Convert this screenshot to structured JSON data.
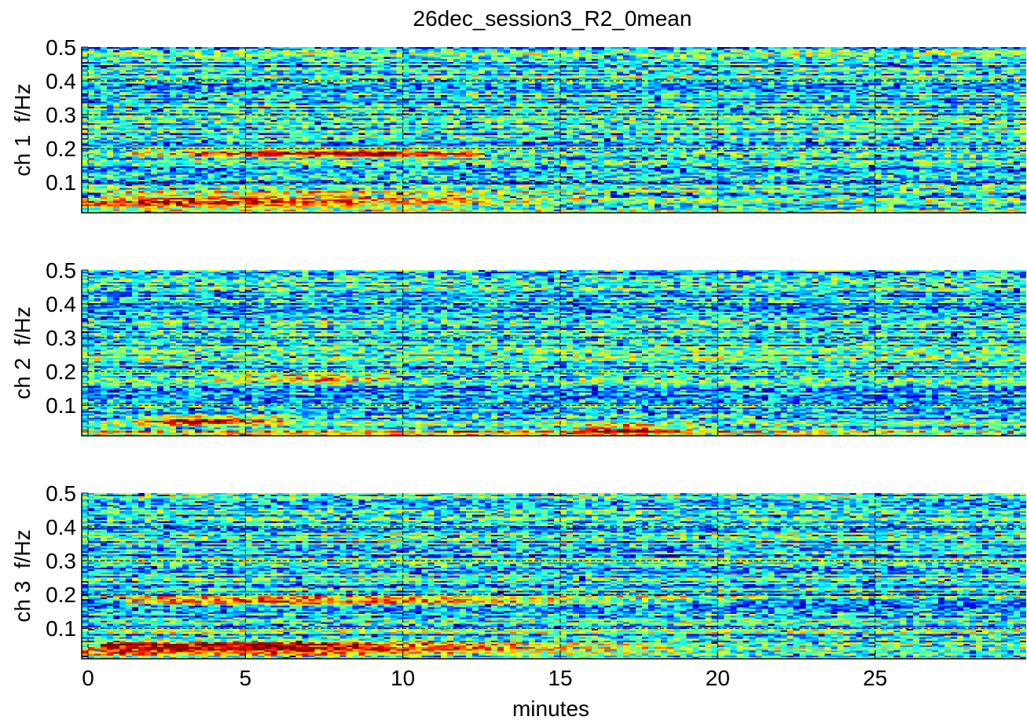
{
  "chart_data": {
    "type": "heatmap",
    "title": "26dec_session3_R2_0mean",
    "xlabel": "minutes",
    "x_ticks": [
      0,
      5,
      10,
      15,
      20,
      25
    ],
    "x_range": [
      -0.2,
      29.8
    ],
    "y_ticks": [
      0.1,
      0.2,
      0.3,
      0.4,
      0.5
    ],
    "y_range": [
      0.01,
      0.5
    ],
    "grid": true,
    "colormap": "jet",
    "panels": [
      {
        "ylabel": "ch 1  f/Hz",
        "bands": [
          {
            "f": 0.185,
            "t_start": 2,
            "t_end": 12,
            "t_peak": 8,
            "level": 0.95
          },
          {
            "f": 0.035,
            "t_start": 0,
            "t_end": 14,
            "t_peak": 3,
            "level": 0.85
          },
          {
            "f": 0.06,
            "t_start": 1,
            "t_end": 16,
            "t_peak": 6,
            "level": 0.7
          }
        ]
      },
      {
        "ylabel": "ch 2  f/Hz",
        "bands": [
          {
            "f": 0.055,
            "t_start": 2,
            "t_end": 6,
            "t_peak": 4,
            "level": 0.95
          },
          {
            "f": 0.03,
            "t_start": 16,
            "t_end": 19,
            "t_peak": 17,
            "level": 0.85
          },
          {
            "f": 0.015,
            "t_start": 0,
            "t_end": 29.8,
            "t_peak": 10,
            "level": 0.6
          },
          {
            "f": 0.18,
            "t_start": 4,
            "t_end": 9,
            "t_peak": 7,
            "level": 0.6
          }
        ]
      },
      {
        "ylabel": "ch 3  f/Hz",
        "bands": [
          {
            "f": 0.18,
            "t_start": 1.8,
            "t_end": 20,
            "t_peak": 7,
            "level": 1.0
          },
          {
            "f": 0.05,
            "t_start": 1,
            "t_end": 18,
            "t_peak": 3.5,
            "level": 0.95
          },
          {
            "f": 0.03,
            "t_start": 0,
            "t_end": 20,
            "t_peak": 3,
            "level": 0.75
          }
        ]
      }
    ]
  }
}
